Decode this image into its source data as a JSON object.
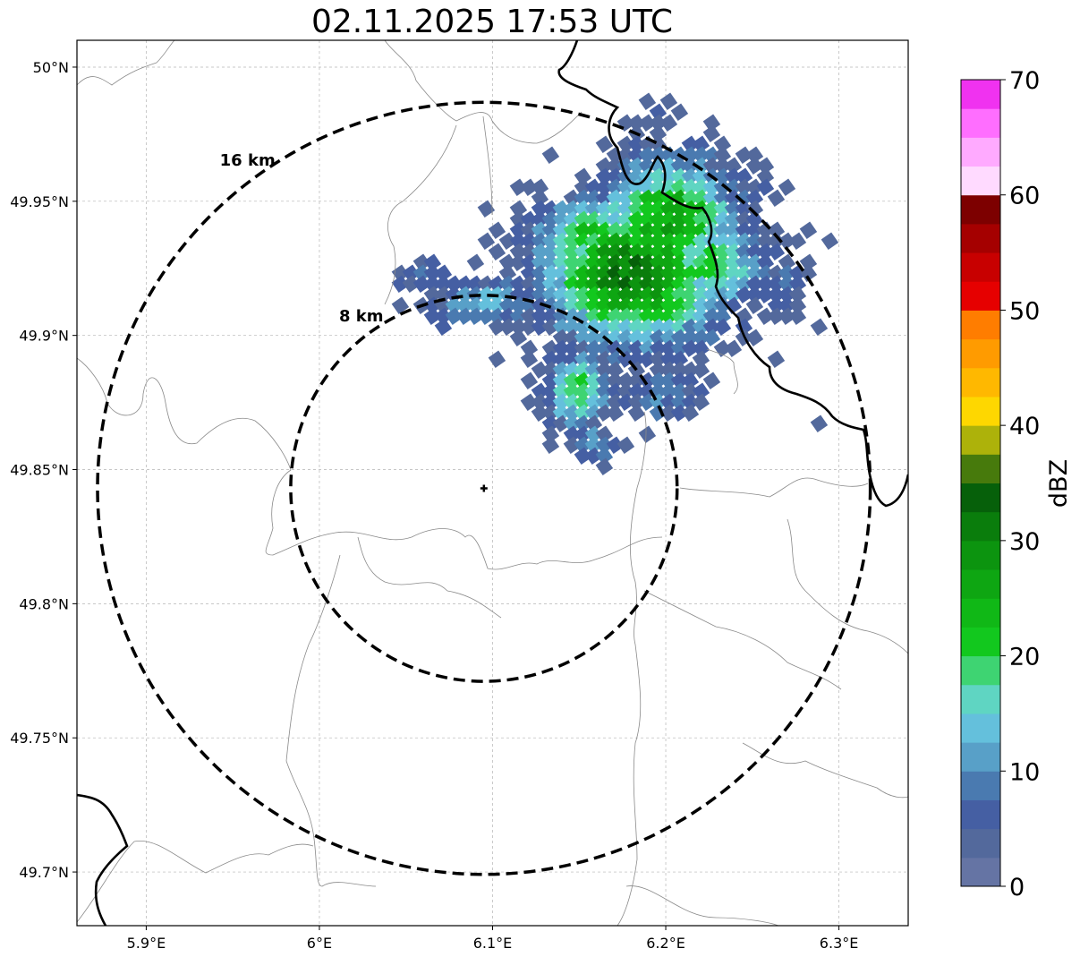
{
  "title": "02.11.2025 17:53 UTC",
  "map": {
    "lon_range": [
      5.86,
      6.34
    ],
    "lat_range": [
      49.68,
      50.01
    ],
    "x_ticks": [
      {
        "value": 5.9,
        "label": "5.9°E"
      },
      {
        "value": 6.0,
        "label": "6°E"
      },
      {
        "value": 6.1,
        "label": "6.1°E"
      },
      {
        "value": 6.2,
        "label": "6.2°E"
      },
      {
        "value": 6.3,
        "label": "6.3°E"
      }
    ],
    "y_ticks": [
      {
        "value": 49.7,
        "label": "49.7°N"
      },
      {
        "value": 49.75,
        "label": "49.75°N"
      },
      {
        "value": 49.8,
        "label": "49.8°N"
      },
      {
        "value": 49.85,
        "label": "49.85°N"
      },
      {
        "value": 49.9,
        "label": "49.9°N"
      },
      {
        "value": 49.95,
        "label": "49.95°N"
      },
      {
        "value": 50.0,
        "label": "50°N"
      }
    ],
    "grid": true,
    "radar_center": {
      "lon": 6.095,
      "lat": 49.843
    },
    "range_rings": [
      {
        "radius_km": 8,
        "label": "8 km"
      },
      {
        "radius_km": 16,
        "label": "16 km"
      }
    ]
  },
  "colorbar": {
    "label": "dBZ",
    "min": 0,
    "max": 70,
    "tick_labels": [
      "0",
      "10",
      "20",
      "30",
      "40",
      "50",
      "60",
      "70"
    ],
    "colors": [
      "#6574a4",
      "#53699c",
      "#455fa3",
      "#4a7ab0",
      "#58a0c8",
      "#64c0dc",
      "#5fd5c2",
      "#3ed472",
      "#12c81e",
      "#10b816",
      "#0ea612",
      "#0c940f",
      "#0a7d0c",
      "#06600a",
      "#477a0c",
      "#adb20a",
      "#fed700",
      "#ffb800",
      "#ff9b00",
      "#ff7d00",
      "#e60000",
      "#c80000",
      "#a50000",
      "#7d0000",
      "#ffdaff",
      "#ffaaff",
      "#ff6eff",
      "#f032f0"
    ]
  }
}
